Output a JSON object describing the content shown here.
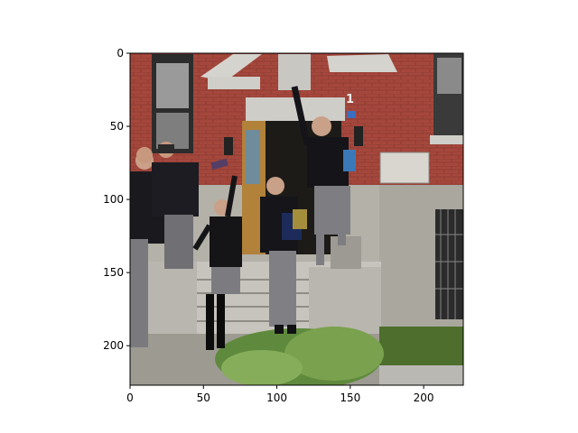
{
  "image": {
    "subject": "school-kids-jumping-off-steps-photo",
    "wall_color": "#a5473c",
    "door_color": "#b2813a",
    "stone_color": "#b3b1a8",
    "concrete_color": "#c6c4bc"
  },
  "axes": {
    "x_range": [
      0,
      227
    ],
    "y_range": [
      227,
      0
    ],
    "x_ticks": [
      {
        "value": 0,
        "label": "0"
      },
      {
        "value": 50,
        "label": "50"
      },
      {
        "value": 100,
        "label": "100"
      },
      {
        "value": 150,
        "label": "150"
      },
      {
        "value": 200,
        "label": "200"
      }
    ],
    "y_ticks": [
      {
        "value": 0,
        "label": "0"
      },
      {
        "value": 50,
        "label": "50"
      },
      {
        "value": 100,
        "label": "100"
      },
      {
        "value": 150,
        "label": "150"
      },
      {
        "value": 200,
        "label": "200"
      }
    ],
    "grid": false
  },
  "sign": {
    "number": "1"
  }
}
